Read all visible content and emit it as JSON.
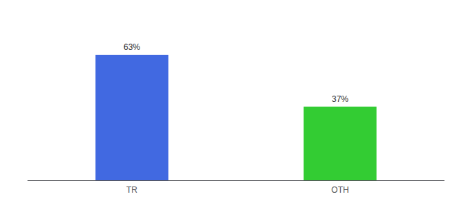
{
  "chart_data": {
    "type": "bar",
    "categories": [
      "TR",
      "OTH"
    ],
    "values": [
      63,
      37
    ],
    "colors": [
      "#4169e1",
      "#33cc33"
    ],
    "data_labels": true,
    "value_labels": [
      "63%",
      "37%"
    ],
    "ylim": [
      0,
      80
    ],
    "grid": false,
    "tick_labels": "x"
  }
}
